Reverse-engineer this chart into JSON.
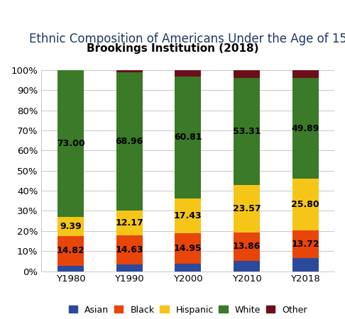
{
  "title": "Ethnic Composition of Americans Under the Age of 15",
  "subtitle": "Brookings Institution (2018)",
  "categories": [
    "Y1980",
    "Y1990",
    "Y2000",
    "Y2010",
    "Y2018"
  ],
  "series": {
    "Asian": [
      2.79,
      3.24,
      3.81,
      5.26,
      6.59
    ],
    "Black": [
      14.82,
      14.63,
      14.95,
      13.86,
      13.72
    ],
    "Hispanic": [
      9.39,
      12.17,
      17.43,
      23.57,
      25.8
    ],
    "White": [
      73.0,
      68.96,
      60.81,
      53.31,
      49.89
    ],
    "Other": [
      0.0,
      1.0,
      3.0,
      4.0,
      4.0
    ]
  },
  "labels": {
    "Asian": [
      null,
      null,
      null,
      null,
      null
    ],
    "Black": [
      "14.82",
      "14.63",
      "14.95",
      "13.86",
      "13.72"
    ],
    "Hispanic": [
      "9.39",
      "12.17",
      "17.43",
      "23.57",
      "25.80"
    ],
    "White": [
      "73.00",
      "68.96",
      "60.81",
      "53.31",
      "49.89"
    ],
    "Other": [
      null,
      null,
      null,
      null,
      null
    ]
  },
  "colors": {
    "Asian": "#2C4A9C",
    "Black": "#E8450A",
    "Hispanic": "#F5C518",
    "White": "#3A7A28",
    "Other": "#6B0F1A"
  },
  "legend_order": [
    "Asian",
    "Black",
    "Hispanic",
    "White",
    "Other"
  ],
  "ylim": [
    0,
    100
  ],
  "yticks": [
    0,
    10,
    20,
    30,
    40,
    50,
    60,
    70,
    80,
    90,
    100
  ],
  "ytick_labels": [
    "0%",
    "10%",
    "20%",
    "30%",
    "40%",
    "50%",
    "60%",
    "70%",
    "80%",
    "90%",
    "100%"
  ],
  "background_color": "#ffffff",
  "title_color": "#1F3864",
  "title_fontsize": 12,
  "subtitle_fontsize": 11,
  "label_fontsize": 9
}
